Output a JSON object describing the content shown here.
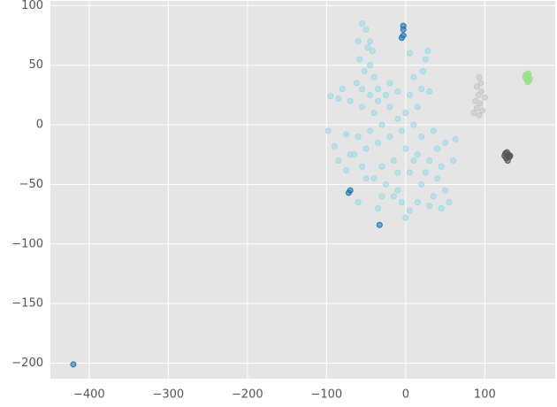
{
  "chart_data": {
    "type": "scatter",
    "xlim": [
      -449,
      189
    ],
    "ylim": [
      -213,
      104
    ],
    "xticks": [
      {
        "value": -400,
        "label": "−400"
      },
      {
        "value": -300,
        "label": "−300"
      },
      {
        "value": -200,
        "label": "−200"
      },
      {
        "value": -100,
        "label": "−100"
      },
      0,
      100
    ],
    "yticks": [
      {
        "value": -200,
        "label": "−200"
      },
      {
        "value": -150,
        "label": "−150"
      },
      {
        "value": -100,
        "label": "−100"
      },
      {
        "value": -50,
        "label": "−50"
      },
      0,
      50,
      100
    ],
    "grid": true,
    "series": [
      {
        "color": "#9edae5",
        "x": [
          -55,
          -50,
          -60,
          -48,
          -58,
          -45,
          -52,
          -40,
          -62,
          -35,
          -80,
          -95,
          -85,
          -70,
          -55,
          -40,
          -25,
          -20,
          -10,
          0,
          5,
          10,
          20,
          25,
          28,
          22,
          30,
          15,
          -30,
          -45,
          -60,
          -75,
          -98,
          -90,
          -70,
          -50,
          -35,
          -20,
          -5,
          10,
          20,
          35,
          40,
          50,
          63,
          45,
          30,
          15,
          0,
          -15,
          -30,
          -40,
          -50,
          -25,
          -10,
          5,
          20,
          35,
          50,
          55,
          45,
          30,
          15,
          5,
          0,
          -5,
          -15,
          -30,
          -35,
          -60,
          -75,
          -65,
          -45,
          -42,
          -55,
          -45,
          -35,
          -20,
          -10,
          5,
          -10,
          25,
          10,
          60,
          40,
          -85,
          -55
        ],
        "values": [
          85,
          80,
          70,
          65,
          55,
          50,
          45,
          40,
          35,
          30,
          30,
          24,
          22,
          20,
          15,
          10,
          25,
          15,
          5,
          10,
          25,
          40,
          30,
          55,
          62,
          45,
          28,
          15,
          0,
          -5,
          -10,
          -8,
          -5,
          -18,
          -25,
          -20,
          -15,
          -10,
          -5,
          0,
          -10,
          -5,
          -20,
          -15,
          -12,
          -35,
          -30,
          -25,
          -20,
          -30,
          -35,
          -45,
          -45,
          -50,
          -55,
          -40,
          -50,
          -60,
          -55,
          -65,
          -70,
          -68,
          -65,
          -72,
          -78,
          -65,
          -60,
          -60,
          -70,
          -65,
          -38,
          -25,
          70,
          62,
          30,
          25,
          20,
          35,
          28,
          60,
          -40,
          -40,
          -30,
          -30,
          -45,
          -30,
          -35
        ]
      },
      {
        "color": "#1f77b4",
        "x": [
          -3,
          -3,
          -3,
          -5,
          -70,
          -72,
          -33,
          -420
        ],
        "values": [
          83,
          80,
          75,
          73,
          -55,
          -57,
          -84,
          -201
        ]
      },
      {
        "color": "#c7c7c7",
        "x": [
          93,
          95,
          90,
          96,
          92,
          88,
          94,
          90,
          97,
          86,
          93,
          100
        ],
        "values": [
          40,
          35,
          32,
          28,
          25,
          20,
          18,
          14,
          12,
          10,
          8,
          23
        ]
      },
      {
        "color": "#98df8a",
        "x": [
          152,
          155,
          157,
          153,
          156,
          151,
          154,
          155
        ],
        "values": [
          42,
          41,
          39,
          38,
          37,
          40,
          36,
          43
        ]
      },
      {
        "color": "#555555",
        "x": [
          126,
          128,
          130,
          131,
          127,
          129,
          125,
          132
        ],
        "values": [
          -24,
          -23,
          -25,
          -27,
          -28,
          -30,
          -26,
          -26
        ]
      }
    ]
  }
}
